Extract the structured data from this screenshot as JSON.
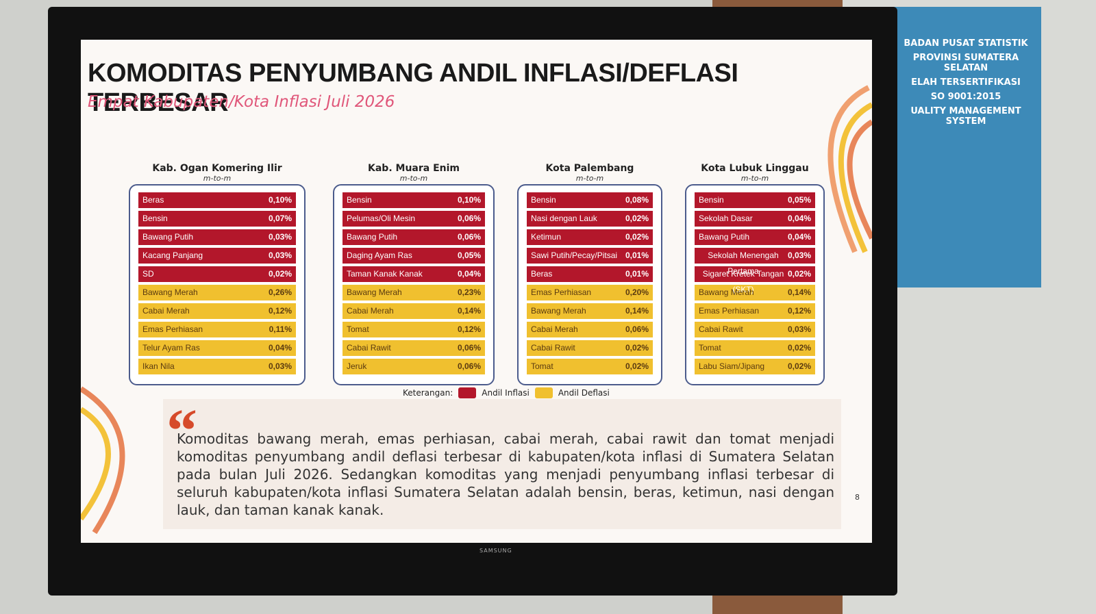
{
  "header": {
    "title": "KOMODITAS PENYUMBANG ANDIL INFLASI/DEFLASI TERBESAR",
    "subtitle": "Empat Kabupaten/Kota Inflasi Juli 2026"
  },
  "panels": [
    {
      "title": "Kab. Ogan Komering Ilir",
      "subtitle": "m-to-m",
      "items": [
        {
          "name": "Beras",
          "value": "0,10%",
          "kind": "inflasi"
        },
        {
          "name": "Bensin",
          "value": "0,07%",
          "kind": "inflasi"
        },
        {
          "name": "Bawang Putih",
          "value": "0,03%",
          "kind": "inflasi"
        },
        {
          "name": "Kacang Panjang",
          "value": "0,03%",
          "kind": "inflasi"
        },
        {
          "name": "SD",
          "value": "0,02%",
          "kind": "inflasi"
        },
        {
          "name": "Bawang Merah",
          "value": "0,26%",
          "kind": "deflasi"
        },
        {
          "name": "Cabai Merah",
          "value": "0,12%",
          "kind": "deflasi"
        },
        {
          "name": "Emas Perhiasan",
          "value": "0,11%",
          "kind": "deflasi"
        },
        {
          "name": "Telur Ayam Ras",
          "value": "0,04%",
          "kind": "deflasi"
        },
        {
          "name": "Ikan Nila",
          "value": "0,03%",
          "kind": "deflasi"
        }
      ]
    },
    {
      "title": "Kab. Muara Enim",
      "subtitle": "m-to-m",
      "items": [
        {
          "name": "Bensin",
          "value": "0,10%",
          "kind": "inflasi"
        },
        {
          "name": "Pelumas/Oli Mesin",
          "value": "0,06%",
          "kind": "inflasi"
        },
        {
          "name": "Bawang Putih",
          "value": "0,06%",
          "kind": "inflasi"
        },
        {
          "name": "Daging Ayam Ras",
          "value": "0,05%",
          "kind": "inflasi"
        },
        {
          "name": "Taman Kanak Kanak",
          "value": "0,04%",
          "kind": "inflasi"
        },
        {
          "name": "Bawang Merah",
          "value": "0,23%",
          "kind": "deflasi"
        },
        {
          "name": "Cabai Merah",
          "value": "0,14%",
          "kind": "deflasi"
        },
        {
          "name": "Tomat",
          "value": "0,12%",
          "kind": "deflasi"
        },
        {
          "name": "Cabai Rawit",
          "value": "0,06%",
          "kind": "deflasi"
        },
        {
          "name": "Jeruk",
          "value": "0,06%",
          "kind": "deflasi"
        }
      ]
    },
    {
      "title": "Kota Palembang",
      "subtitle": "m-to-m",
      "items": [
        {
          "name": "Bensin",
          "value": "0,08%",
          "kind": "inflasi"
        },
        {
          "name": "Nasi dengan Lauk",
          "value": "0,02%",
          "kind": "inflasi"
        },
        {
          "name": "Ketimun",
          "value": "0,02%",
          "kind": "inflasi"
        },
        {
          "name": "Sawi Putih/Pecay/Pitsai",
          "value": "0,01%",
          "kind": "inflasi"
        },
        {
          "name": "Beras",
          "value": "0,01%",
          "kind": "inflasi"
        },
        {
          "name": "Emas Perhiasan",
          "value": "0,20%",
          "kind": "deflasi"
        },
        {
          "name": "Bawang Merah",
          "value": "0,14%",
          "kind": "deflasi"
        },
        {
          "name": "Cabai Merah",
          "value": "0,06%",
          "kind": "deflasi"
        },
        {
          "name": "Cabai Rawit",
          "value": "0,02%",
          "kind": "deflasi"
        },
        {
          "name": "Tomat",
          "value": "0,02%",
          "kind": "deflasi"
        }
      ]
    },
    {
      "title": "Kota Lubuk Linggau",
      "subtitle": "m-to-m",
      "items": [
        {
          "name": "Bensin",
          "value": "0,05%",
          "kind": "inflasi"
        },
        {
          "name": "Sekolah Dasar",
          "value": "0,04%",
          "kind": "inflasi"
        },
        {
          "name": "Bawang Putih",
          "value": "0,04%",
          "kind": "inflasi"
        },
        {
          "name": "Sekolah Menengah Pertama",
          "value": "0,03%",
          "kind": "inflasi"
        },
        {
          "name": "Sigaret Kretek Tangan (SKT)",
          "value": "0,02%",
          "kind": "inflasi"
        },
        {
          "name": "Bawang Merah",
          "value": "0,14%",
          "kind": "deflasi"
        },
        {
          "name": "Emas Perhiasan",
          "value": "0,12%",
          "kind": "deflasi"
        },
        {
          "name": "Cabai Rawit",
          "value": "0,03%",
          "kind": "deflasi"
        },
        {
          "name": "Tomat",
          "value": "0,02%",
          "kind": "deflasi"
        },
        {
          "name": "Labu Siam/Jipang",
          "value": "0,02%",
          "kind": "deflasi"
        }
      ]
    }
  ],
  "legend": {
    "label": "Keterangan:",
    "items": [
      {
        "name": "Andil Inflasi",
        "kind": "inflasi"
      },
      {
        "name": "Andil Deflasi",
        "kind": "deflasi"
      }
    ]
  },
  "colors": {
    "inflasi": "#b3172b",
    "deflasi": "#f0c02f"
  },
  "quote": "Komoditas bawang merah, emas perhiasan, cabai merah, cabai rawit dan tomat menjadi komoditas penyumbang andil deflasi terbesar di kabupaten/kota inflasi di Sumatera Selatan pada bulan Juli 2026. Sedangkan komoditas yang menjadi penyumbang inflasi terbesar di seluruh kabupaten/kota inflasi Sumatera Selatan adalah bensin, beras, ketimun, nasi dengan lauk, dan taman kanak kanak.",
  "page_number": "8",
  "brand": "SAMSUNG",
  "poster": {
    "lines": [
      "BADAN PUSAT STATISTIK",
      "PROVINSI SUMATERA SELATAN",
      "ELAH TERSERTIFIKASI",
      "SO 9001:2015",
      "UALITY MANAGEMENT SYSTEM"
    ]
  }
}
